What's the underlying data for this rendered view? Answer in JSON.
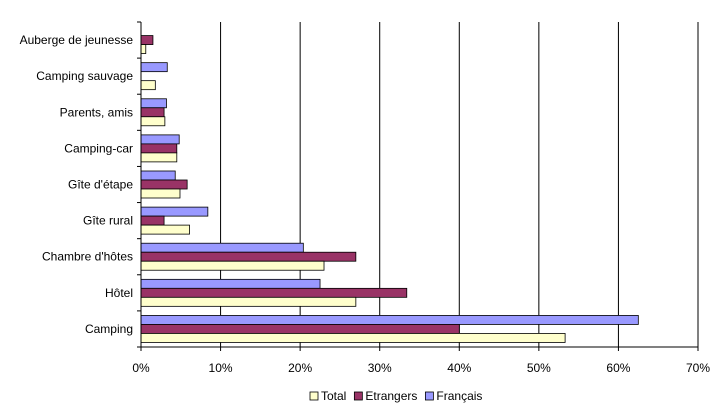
{
  "chart_data": {
    "type": "bar",
    "orientation": "horizontal",
    "title": "",
    "xlabel": "",
    "ylabel": "",
    "categories": [
      "Auberge de jeunesse",
      "Camping sauvage",
      "Parents, amis",
      "Camping-car",
      "Gîte d'étape",
      "Gîte rural",
      "Chambre d'hôtes",
      "Hôtel",
      "Camping"
    ],
    "series": [
      {
        "name": "Total",
        "color": "#ffffcc",
        "values": [
          0.6,
          1.8,
          3.0,
          4.5,
          4.9,
          6.1,
          23.0,
          27.0,
          53.3
        ]
      },
      {
        "name": "Etrangers",
        "color": "#993366",
        "values": [
          1.5,
          0.0,
          2.9,
          4.5,
          5.8,
          2.9,
          27.0,
          33.4,
          40.0
        ]
      },
      {
        "name": "Français",
        "color": "#9999ff",
        "values": [
          0.0,
          3.3,
          3.2,
          4.8,
          4.3,
          8.4,
          20.4,
          22.5,
          62.5
        ]
      }
    ],
    "xlim": [
      0,
      70
    ],
    "xticks": [
      "0%",
      "10%",
      "20%",
      "30%",
      "40%",
      "50%",
      "60%",
      "70%"
    ],
    "grid": "vertical",
    "legend_position": "bottom"
  }
}
